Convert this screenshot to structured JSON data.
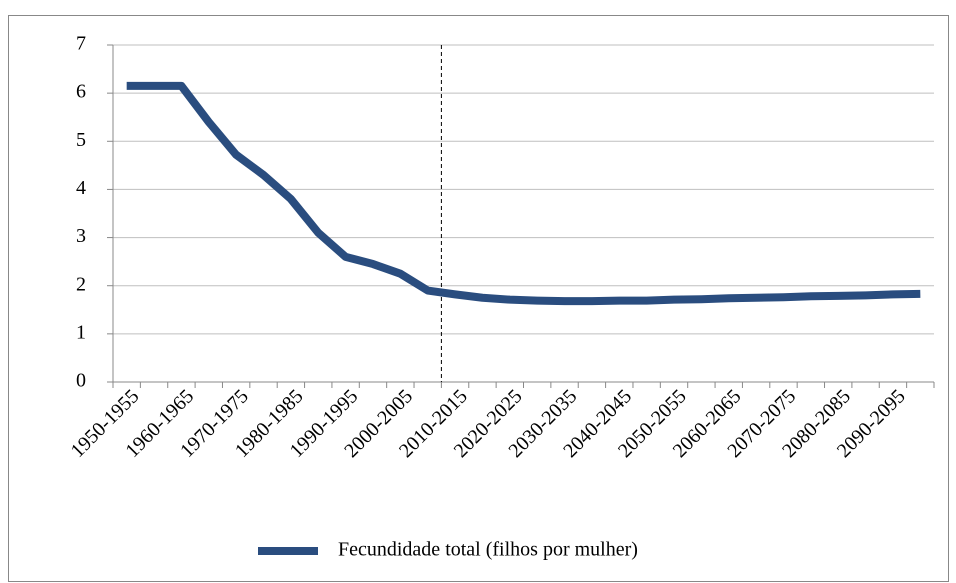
{
  "chart_data": {
    "type": "line",
    "categories": [
      "1950-1955",
      null,
      "1960-1965",
      null,
      "1970-1975",
      null,
      "1980-1985",
      null,
      "1990-1995",
      null,
      "2000-2005",
      null,
      "2010-2015",
      null,
      "2020-2025",
      null,
      "2030-2035",
      null,
      "2040-2045",
      null,
      "2050-2055",
      null,
      "2060-2065",
      null,
      "2070-2075",
      null,
      "2080-2085",
      null,
      "2090-2095",
      null
    ],
    "series": [
      {
        "name": "Fecundidade total (filhos por mulher)",
        "color": "#2a4d7f",
        "values": [
          6.15,
          6.15,
          6.15,
          5.4,
          4.72,
          4.3,
          3.8,
          3.1,
          2.6,
          2.45,
          2.25,
          1.9,
          1.82,
          1.75,
          1.71,
          1.69,
          1.68,
          1.68,
          1.69,
          1.69,
          1.71,
          1.72,
          1.74,
          1.75,
          1.76,
          1.78,
          1.79,
          1.8,
          1.82,
          1.83
        ]
      }
    ],
    "ylim": [
      0,
      7
    ],
    "yticks": [
      0,
      1,
      2,
      3,
      4,
      5,
      6,
      7
    ],
    "grid": true,
    "legend": "bottom"
  }
}
